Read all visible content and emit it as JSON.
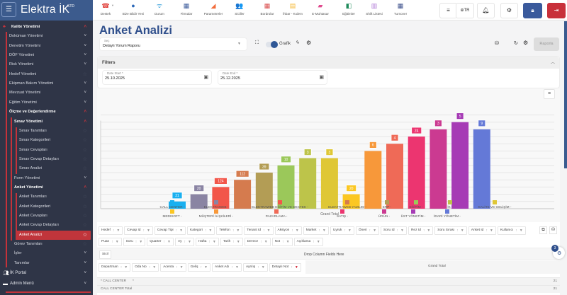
{
  "app": {
    "logo": "Elektra İK",
    "logo_sup": "STD"
  },
  "topnav": [
    {
      "label": "Destek",
      "icon": "support-icon",
      "glyph": "☎",
      "color": "#e0403a"
    },
    {
      "label": "Bize Bildir Yeni",
      "icon": "chat-bubble-icon",
      "glyph": "●",
      "color": "#2b68b8"
    },
    {
      "label": "Durum",
      "icon": "wifi-icon",
      "glyph": "ᯤ",
      "color": "#2d9bd9"
    },
    {
      "label": "Firmalar",
      "icon": "building-icon",
      "glyph": "▦",
      "color": "#3a5a9a"
    },
    {
      "label": "Parametreler",
      "icon": "triangle-icon",
      "glyph": "◢",
      "color": "#f26b3a"
    },
    {
      "label": "Siciller",
      "icon": "users-icon",
      "glyph": "👥",
      "color": "#35b3d6"
    },
    {
      "label": "Bordrolar",
      "icon": "grid-icon",
      "glyph": "▦",
      "color": "#d94a4a"
    },
    {
      "label": "İhbar - Kıdem",
      "icon": "calculator-icon",
      "glyph": "▤",
      "color": "#f5b731"
    },
    {
      "label": "E-Muhtasar",
      "icon": "folder-plus-icon",
      "glyph": "▰",
      "color": "#e04a8e"
    },
    {
      "label": "Eğitimler",
      "icon": "training-icon",
      "glyph": "◧",
      "color": "#1e8a5a"
    },
    {
      "label": "Shift Listesi",
      "icon": "calendar-icon",
      "glyph": "▥",
      "color": "#b07ad6"
    },
    {
      "label": "Turnover",
      "icon": "chart-grid-icon",
      "glyph": "▦",
      "color": "#3a4e8a"
    }
  ],
  "topbar_right": {
    "language": "TR"
  },
  "sidebar": {
    "items": [
      {
        "label": "Kalite Yönetimi",
        "level": 0,
        "bold": true,
        "state": "open"
      },
      {
        "label": "Doküman Yönetimi",
        "level": 1,
        "state": "closed"
      },
      {
        "label": "Denetim Yönetimi",
        "level": 1,
        "state": "closed"
      },
      {
        "label": "DÖF Yönetimi",
        "level": 1,
        "state": "closed"
      },
      {
        "label": "Risk Yönetimi",
        "level": 1,
        "state": "closed"
      },
      {
        "label": "Hedef Yönetimi",
        "level": 1,
        "state": "leaf"
      },
      {
        "label": "Ekipman Bakım Yönetimi",
        "level": 1,
        "state": "closed"
      },
      {
        "label": "Mevzuat Yönetimi",
        "level": 1,
        "state": "closed"
      },
      {
        "label": "Eğitim Yönetimi",
        "level": 1,
        "state": "closed"
      },
      {
        "label": "Ölçme ve Değerlendirme",
        "level": 1,
        "bold": true,
        "state": "open"
      },
      {
        "label": "Sınav Yönetimi",
        "level": 2,
        "bold": true,
        "state": "open"
      },
      {
        "label": "Sınav Tanımları",
        "level": 3,
        "state": "leaf"
      },
      {
        "label": "Sınav Kategorileri",
        "level": 3,
        "state": "leaf"
      },
      {
        "label": "Sınav Cevapları",
        "level": 3,
        "state": "leaf"
      },
      {
        "label": "Sınav Cevap Detayları",
        "level": 3,
        "state": "leaf"
      },
      {
        "label": "Sınav Analizi",
        "level": 3,
        "state": "leaf"
      },
      {
        "label": "Form Yönetimi",
        "level": 2,
        "state": "closed"
      },
      {
        "label": "Anket Yönetimi",
        "level": 2,
        "bold": true,
        "state": "open"
      },
      {
        "label": "Anket Tanımları",
        "level": 3,
        "state": "leaf"
      },
      {
        "label": "Anket Kategorileri",
        "level": 3,
        "state": "leaf"
      },
      {
        "label": "Anket Cevapları",
        "level": 3,
        "state": "leaf"
      },
      {
        "label": "Anket Cevap Detayları",
        "level": 3,
        "state": "leaf"
      },
      {
        "label": "Anket Analizi",
        "level": 3,
        "state": "active"
      },
      {
        "label": "Görev Tanımları",
        "level": 2,
        "state": "leaf"
      },
      {
        "label": "İşler",
        "level": 2,
        "state": "closed"
      },
      {
        "label": "Tanımlar",
        "level": 2,
        "state": "closed"
      }
    ],
    "bottom": [
      {
        "label": "İK Portal",
        "icon": "users-icon"
      },
      {
        "label": "Admin Menü",
        "icon": "folder-icon"
      }
    ],
    "accent": "#c4323a"
  },
  "page": {
    "title": "Anket Analizi",
    "select": {
      "label": "Seç",
      "value": "Detaylı Yorum Raporu"
    },
    "toggle_label": "Grafik",
    "toggle_on": true,
    "report_button": "Raporla"
  },
  "filters": {
    "title": "Filters",
    "date_start": {
      "label": "Date Start *",
      "value": "25.10.2025"
    },
    "date_end": {
      "label": "Date End *",
      "value": "25.12.2025"
    }
  },
  "chart_data": {
    "type": "bar",
    "title": "",
    "xlabel": "Grand Total",
    "ylabel": "",
    "grid": true,
    "legend": "bottom",
    "ylim": [
      0,
      13
    ],
    "categories": [
      "CALL CENTER -",
      "ELEKTRAWEB -",
      "ELEKTRAWEB EĞİTİM VE DESTEK -",
      "ELEKTRAWEB YAZILIM -",
      "ERP -",
      "EĞİTİM -",
      "İK -",
      "KALİTE VE GELİŞİM -",
      "MEDISOFT -",
      "MÜŞTERİ İLİŞKİLERİ -",
      "PAZARLAMA -",
      "SATIŞ -",
      "ÜRÜN -",
      "ÜST YÖNETİM -",
      "İDARİ YÖNETİM -"
    ],
    "data_labels": [
      21,
      20,
      124,
      112,
      39,
      10,
      3,
      3,
      20,
      6,
      4,
      24,
      3,
      5,
      9
    ],
    "bar_levels": [
      1,
      2,
      3,
      4,
      5,
      6,
      7,
      7,
      2,
      8,
      9,
      10,
      11,
      12,
      11
    ],
    "colors": [
      "#1ab0f0",
      "#8a84a3",
      "#f2564a",
      "#d57b4e",
      "#b39d55",
      "#9bc85a",
      "#bdc44a",
      "#dfc735",
      "#fbc723",
      "#f7983a",
      "#ef6a57",
      "#ec3570",
      "#cb3a91",
      "#a63bb5",
      "#6479d7"
    ]
  },
  "pivot": {
    "filter_fields_row1": [
      "Hedef",
      "Cevap Id",
      "Cevap Tipi",
      "Kategori",
      "Telefon",
      "Tenant Id",
      "Aksiyon",
      "Market",
      "Uyruk",
      "Öneri",
      "Soru Id",
      "Rez Id",
      "Soru Sırası",
      "Anket Id",
      "Kullanıcı"
    ],
    "filter_fields_row2": [
      "Puan",
      "Soru",
      "Quarter",
      "Ay",
      "Hafta",
      "Tarih",
      "Derece",
      "Not",
      "Açıklama"
    ],
    "data_field": "Sicil",
    "drop_column_hint": "Drop Column Fields Here",
    "row_fields": [
      "Departman",
      "Oda No",
      "Acenta",
      "Geliş",
      "Anket Adı",
      "Ayrılış",
      "Detaylı Not"
    ],
    "column_header": "Grand Total",
    "rows": [
      {
        "label": "* CALL CENTER",
        "sub": "*",
        "value": "21"
      },
      {
        "label": "CALL CENTER Total",
        "sub": "",
        "value": "21"
      }
    ]
  },
  "floating": {
    "badge": "3"
  }
}
